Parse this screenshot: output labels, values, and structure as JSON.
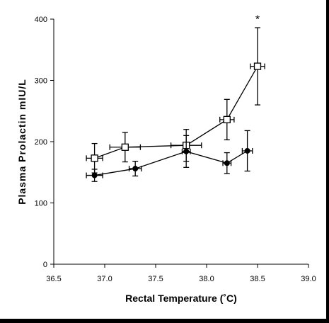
{
  "chart_data": {
    "type": "scatter",
    "title": "",
    "xlabel": "Rectal Temperature (˚C)",
    "ylabel": "Plasma Prolactin mIU/L",
    "xlim": [
      36.5,
      39.0
    ],
    "ylim": [
      0,
      400
    ],
    "x_ticks": [
      "36.5",
      "37.0",
      "37.5",
      "38.0",
      "38.5",
      "39.0"
    ],
    "y_ticks": [
      "0",
      "100",
      "200",
      "300",
      "400"
    ],
    "grid": false,
    "legend": "none",
    "series": [
      {
        "marker": "open-square",
        "color": "#000000",
        "points": [
          {
            "x": 36.9,
            "y": 173,
            "x_err": 0.08,
            "y_err": 24
          },
          {
            "x": 37.2,
            "y": 191,
            "x_err": 0.15,
            "y_err": 24
          },
          {
            "x": 37.8,
            "y": 194,
            "x_err": 0.15,
            "y_err": 26
          },
          {
            "x": 38.2,
            "y": 236,
            "x_err": 0.07,
            "y_err": 33
          },
          {
            "x": 38.5,
            "y": 323,
            "x_err": 0.07,
            "y_err": 63
          }
        ]
      },
      {
        "marker": "filled-circle",
        "color": "#000000",
        "points": [
          {
            "x": 36.9,
            "y": 145,
            "x_err": 0.08,
            "y_err": 10
          },
          {
            "x": 37.3,
            "y": 156,
            "x_err": 0.06,
            "y_err": 12
          },
          {
            "x": 37.8,
            "y": 184,
            "x_err": 0.04,
            "y_err": 26
          },
          {
            "x": 38.2,
            "y": 165,
            "x_err": 0.04,
            "y_err": 17
          },
          {
            "x": 38.4,
            "y": 185,
            "x_err": 0.05,
            "y_err": 33
          }
        ]
      }
    ],
    "annotations": [
      {
        "text": "*",
        "x": 38.5,
        "y": 410
      }
    ]
  }
}
